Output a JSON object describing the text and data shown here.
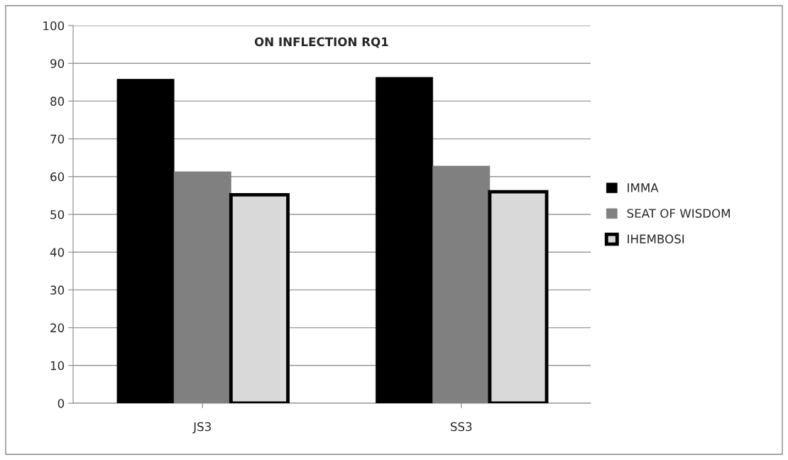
{
  "chart_data": {
    "type": "bar",
    "title": "ON INFLECTION RQ1",
    "categories": [
      "JS3",
      "SS3"
    ],
    "series": [
      {
        "name": "IMMA",
        "color": "#000000",
        "values": [
          85.8,
          86.3
        ]
      },
      {
        "name": "SEAT OF WISDOM",
        "color": "#808080",
        "values": [
          61.3,
          62.8
        ]
      },
      {
        "name": "IHEMBOSI",
        "color": "#d9d9d9",
        "values": [
          55.2,
          56.0
        ]
      }
    ],
    "ylim": [
      0,
      100
    ],
    "yticks": [
      0,
      10,
      20,
      30,
      40,
      50,
      60,
      70,
      80,
      90,
      100
    ],
    "grid": "y",
    "legend": "right"
  }
}
